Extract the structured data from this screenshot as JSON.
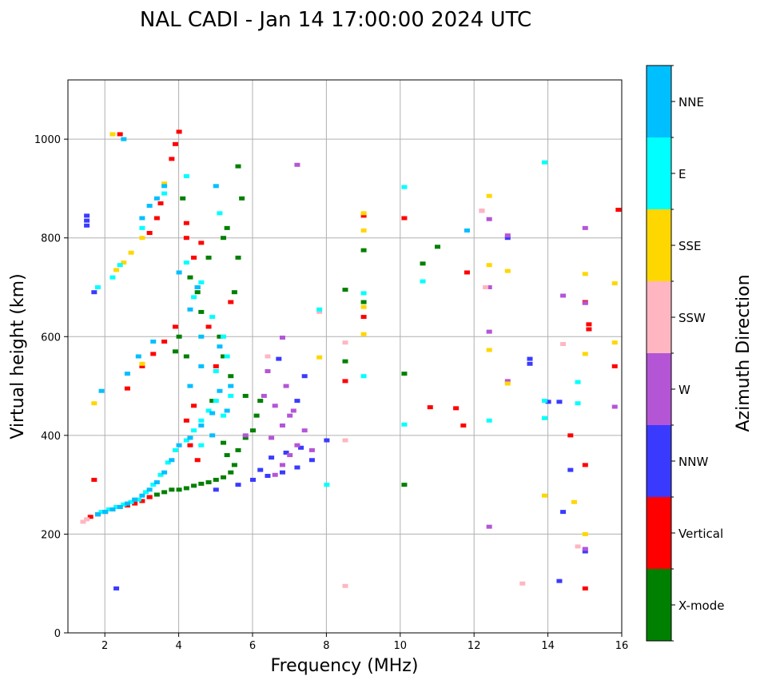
{
  "chart_data": {
    "type": "scatter",
    "title": "NAL CADI - Jan 14 17:00:00 2024 UTC",
    "xlabel": "Frequency (MHz)",
    "ylabel": "Virtual height (km)",
    "xlim": [
      1,
      16
    ],
    "ylim": [
      0,
      1120
    ],
    "xticks": [
      2,
      4,
      6,
      8,
      10,
      12,
      14,
      16
    ],
    "yticks": [
      0,
      200,
      400,
      600,
      800,
      1000
    ],
    "grid": true,
    "colorbar": {
      "label": "Azimuth Direction",
      "categories": [
        "X-mode",
        "Vertical",
        "NNW",
        "W",
        "SSW",
        "SSE",
        "E",
        "NNE"
      ],
      "colors": [
        "#008000",
        "#ff0000",
        "#3a3aff",
        "#b455d6",
        "#ffb6c1",
        "#ffd700",
        "#00ffff",
        "#00bfff"
      ]
    },
    "series": [
      {
        "name": "X-mode",
        "points": [
          [
            3.2,
            275
          ],
          [
            3.4,
            280
          ],
          [
            3.6,
            285
          ],
          [
            3.8,
            290
          ],
          [
            4.0,
            290
          ],
          [
            4.2,
            293
          ],
          [
            4.4,
            298
          ],
          [
            4.6,
            302
          ],
          [
            4.8,
            305
          ],
          [
            5.0,
            310
          ],
          [
            5.2,
            315
          ],
          [
            5.4,
            325
          ],
          [
            5.5,
            340
          ],
          [
            5.3,
            360
          ],
          [
            5.6,
            370
          ],
          [
            5.2,
            385
          ],
          [
            5.8,
            395
          ],
          [
            6.0,
            410
          ],
          [
            6.1,
            440
          ],
          [
            6.2,
            470
          ],
          [
            5.8,
            480
          ],
          [
            4.9,
            470
          ],
          [
            5.4,
            520
          ],
          [
            5.2,
            560
          ],
          [
            5.1,
            600
          ],
          [
            4.6,
            650
          ],
          [
            4.2,
            560
          ],
          [
            4.0,
            600
          ],
          [
            3.9,
            570
          ],
          [
            4.5,
            690
          ],
          [
            4.3,
            720
          ],
          [
            4.8,
            760
          ],
          [
            5.2,
            800
          ],
          [
            5.3,
            820
          ],
          [
            5.5,
            690
          ],
          [
            5.6,
            760
          ],
          [
            5.7,
            880
          ],
          [
            5.6,
            945
          ],
          [
            4.1,
            880
          ],
          [
            10.1,
            300
          ],
          [
            10.1,
            525
          ],
          [
            9.0,
            670
          ],
          [
            9.0,
            775
          ],
          [
            8.5,
            695
          ],
          [
            8.5,
            550
          ],
          [
            10.6,
            748
          ],
          [
            11.0,
            782
          ]
        ]
      },
      {
        "name": "Vertical",
        "points": [
          [
            1.6,
            235
          ],
          [
            1.8,
            240
          ],
          [
            2.0,
            245
          ],
          [
            2.2,
            250
          ],
          [
            2.4,
            255
          ],
          [
            2.6,
            258
          ],
          [
            2.8,
            262
          ],
          [
            3.0,
            267
          ],
          [
            3.2,
            275
          ],
          [
            2.6,
            495
          ],
          [
            3.0,
            540
          ],
          [
            3.3,
            565
          ],
          [
            3.6,
            590
          ],
          [
            3.9,
            620
          ],
          [
            3.8,
            960
          ],
          [
            3.9,
            990
          ],
          [
            4.0,
            1015
          ],
          [
            3.5,
            870
          ],
          [
            3.4,
            840
          ],
          [
            3.2,
            810
          ],
          [
            4.2,
            830
          ],
          [
            4.2,
            800
          ],
          [
            4.4,
            760
          ],
          [
            4.6,
            790
          ],
          [
            4.5,
            700
          ],
          [
            4.4,
            460
          ],
          [
            4.2,
            430
          ],
          [
            4.3,
            380
          ],
          [
            4.5,
            350
          ],
          [
            4.8,
            620
          ],
          [
            5.0,
            540
          ],
          [
            5.4,
            670
          ],
          [
            2.4,
            1010
          ],
          [
            8.5,
            510
          ],
          [
            9.0,
            640
          ],
          [
            9.0,
            845
          ],
          [
            10.1,
            840
          ],
          [
            10.8,
            457
          ],
          [
            11.5,
            455
          ],
          [
            11.7,
            420
          ],
          [
            11.8,
            730
          ],
          [
            14.6,
            400
          ],
          [
            15.0,
            90
          ],
          [
            15.0,
            340
          ],
          [
            15.1,
            615
          ],
          [
            15.1,
            625
          ],
          [
            15.0,
            670
          ],
          [
            15.8,
            540
          ],
          [
            15.9,
            857
          ],
          [
            1.7,
            310
          ]
        ]
      },
      {
        "name": "NNW",
        "points": [
          [
            1.5,
            845
          ],
          [
            1.5,
            835
          ],
          [
            1.5,
            825
          ],
          [
            2.3,
            90
          ],
          [
            5.0,
            290
          ],
          [
            5.6,
            300
          ],
          [
            6.0,
            310
          ],
          [
            6.4,
            318
          ],
          [
            6.8,
            325
          ],
          [
            7.2,
            335
          ],
          [
            7.6,
            350
          ],
          [
            6.5,
            355
          ],
          [
            6.9,
            365
          ],
          [
            7.3,
            375
          ],
          [
            6.2,
            330
          ],
          [
            8.0,
            390
          ],
          [
            6.7,
            555
          ],
          [
            7.4,
            520
          ],
          [
            7.2,
            470
          ],
          [
            13.5,
            555
          ],
          [
            13.5,
            545
          ],
          [
            14.0,
            468
          ],
          [
            14.3,
            468
          ],
          [
            14.4,
            245
          ],
          [
            14.6,
            330
          ],
          [
            14.3,
            105
          ],
          [
            15.0,
            165
          ],
          [
            12.9,
            800
          ],
          [
            1.7,
            690
          ]
        ]
      },
      {
        "name": "W",
        "points": [
          [
            6.6,
            320
          ],
          [
            6.8,
            340
          ],
          [
            7.0,
            360
          ],
          [
            7.2,
            380
          ],
          [
            6.5,
            395
          ],
          [
            6.8,
            420
          ],
          [
            7.0,
            440
          ],
          [
            6.6,
            460
          ],
          [
            6.3,
            480
          ],
          [
            6.9,
            500
          ],
          [
            7.1,
            450
          ],
          [
            7.4,
            410
          ],
          [
            7.6,
            370
          ],
          [
            6.4,
            530
          ],
          [
            6.8,
            598
          ],
          [
            5.8,
            400
          ],
          [
            7.2,
            948
          ],
          [
            12.4,
            215
          ],
          [
            12.4,
            610
          ],
          [
            12.4,
            700
          ],
          [
            12.4,
            838
          ],
          [
            12.9,
            805
          ],
          [
            12.9,
            510
          ],
          [
            14.4,
            683
          ],
          [
            15.0,
            820
          ],
          [
            15.0,
            668
          ],
          [
            15.8,
            458
          ],
          [
            15.0,
            170
          ],
          [
            12.2,
            855
          ]
        ]
      },
      {
        "name": "SSW",
        "points": [
          [
            1.4,
            225
          ],
          [
            1.5,
            230
          ],
          [
            6.4,
            560
          ],
          [
            7.8,
            650
          ],
          [
            8.5,
            390
          ],
          [
            8.5,
            95
          ],
          [
            8.5,
            588
          ],
          [
            12.3,
            700
          ],
          [
            13.3,
            100
          ],
          [
            14.4,
            585
          ],
          [
            14.8,
            175
          ],
          [
            12.2,
            855
          ]
        ]
      },
      {
        "name": "SSE",
        "points": [
          [
            2.3,
            735
          ],
          [
            2.5,
            750
          ],
          [
            2.7,
            770
          ],
          [
            3.0,
            800
          ],
          [
            3.6,
            910
          ],
          [
            3.0,
            545
          ],
          [
            1.7,
            465
          ],
          [
            2.2,
            1010
          ],
          [
            9.0,
            605
          ],
          [
            9.0,
            815
          ],
          [
            9.0,
            660
          ],
          [
            9.0,
            850
          ],
          [
            12.4,
            885
          ],
          [
            12.4,
            745
          ],
          [
            12.4,
            573
          ],
          [
            12.9,
            733
          ],
          [
            12.9,
            505
          ],
          [
            13.9,
            278
          ],
          [
            14.7,
            265
          ],
          [
            15.0,
            200
          ],
          [
            15.0,
            727
          ],
          [
            15.0,
            565
          ],
          [
            15.8,
            708
          ],
          [
            15.8,
            588
          ],
          [
            7.8,
            558
          ]
        ]
      },
      {
        "name": "E",
        "points": [
          [
            1.9,
            245
          ],
          [
            2.1,
            250
          ],
          [
            2.3,
            255
          ],
          [
            2.5,
            260
          ],
          [
            2.7,
            265
          ],
          [
            2.9,
            270
          ],
          [
            3.1,
            285
          ],
          [
            3.3,
            300
          ],
          [
            3.5,
            320
          ],
          [
            3.7,
            345
          ],
          [
            3.9,
            370
          ],
          [
            4.2,
            390
          ],
          [
            4.4,
            410
          ],
          [
            4.6,
            430
          ],
          [
            4.8,
            450
          ],
          [
            5.0,
            470
          ],
          [
            5.2,
            440
          ],
          [
            5.4,
            480
          ],
          [
            4.6,
            380
          ],
          [
            5.0,
            530
          ],
          [
            5.3,
            560
          ],
          [
            5.2,
            600
          ],
          [
            4.9,
            640
          ],
          [
            4.4,
            680
          ],
          [
            4.6,
            710
          ],
          [
            4.2,
            750
          ],
          [
            5.1,
            850
          ],
          [
            4.2,
            925
          ],
          [
            2.2,
            720
          ],
          [
            2.4,
            745
          ],
          [
            3.0,
            820
          ],
          [
            3.6,
            890
          ],
          [
            8.0,
            300
          ],
          [
            9.0,
            688
          ],
          [
            9.0,
            520
          ],
          [
            10.1,
            903
          ],
          [
            10.1,
            422
          ],
          [
            10.6,
            712
          ],
          [
            12.4,
            430
          ],
          [
            13.9,
            470
          ],
          [
            13.9,
            435
          ],
          [
            14.8,
            508
          ],
          [
            14.8,
            465
          ],
          [
            13.9,
            953
          ],
          [
            7.8,
            655
          ],
          [
            1.8,
            700
          ]
        ]
      },
      {
        "name": "NNE",
        "points": [
          [
            1.8,
            240
          ],
          [
            2.0,
            245
          ],
          [
            2.2,
            250
          ],
          [
            2.4,
            255
          ],
          [
            2.6,
            262
          ],
          [
            2.8,
            270
          ],
          [
            3.0,
            278
          ],
          [
            3.2,
            290
          ],
          [
            3.4,
            305
          ],
          [
            3.6,
            325
          ],
          [
            3.8,
            350
          ],
          [
            4.0,
            380
          ],
          [
            4.3,
            395
          ],
          [
            4.6,
            420
          ],
          [
            4.9,
            445
          ],
          [
            5.1,
            490
          ],
          [
            5.4,
            500
          ],
          [
            5.3,
            450
          ],
          [
            4.9,
            400
          ],
          [
            4.3,
            500
          ],
          [
            4.6,
            540
          ],
          [
            5.1,
            580
          ],
          [
            4.6,
            600
          ],
          [
            4.3,
            655
          ],
          [
            4.5,
            700
          ],
          [
            4.0,
            730
          ],
          [
            2.6,
            525
          ],
          [
            2.9,
            560
          ],
          [
            3.3,
            590
          ],
          [
            3.0,
            840
          ],
          [
            3.2,
            865
          ],
          [
            3.6,
            905
          ],
          [
            3.4,
            880
          ],
          [
            5.0,
            905
          ],
          [
            2.5,
            1000
          ],
          [
            11.8,
            815
          ],
          [
            1.9,
            490
          ]
        ]
      }
    ]
  }
}
